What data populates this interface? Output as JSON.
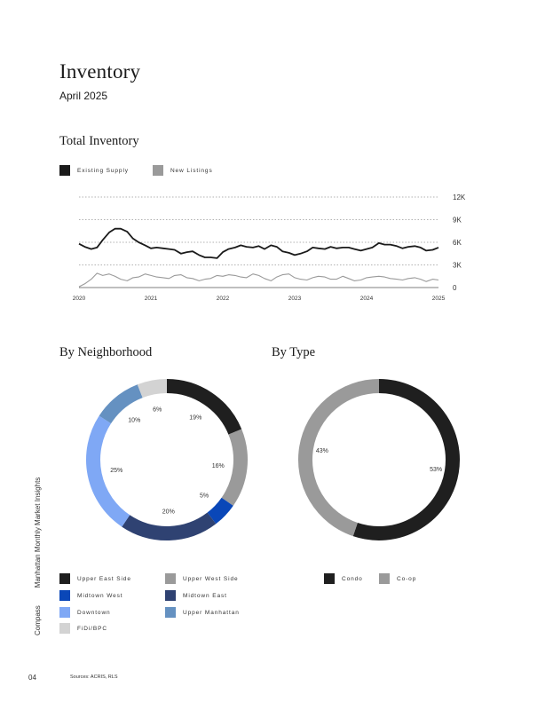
{
  "page": {
    "title": "Inventory",
    "subtitle": "April 2025",
    "page_number": "04",
    "sources": "Sources: ACRIS, RLS",
    "side_brand": "Compass",
    "side_publication": "Manhattan Monthly Market Insights"
  },
  "sections": {
    "total_inventory": "Total Inventory",
    "by_neighborhood": "By Neighborhood",
    "by_type": "By Type"
  },
  "colors": {
    "existing_supply": "#1a1a1a",
    "new_listings": "#9a9a9a",
    "upper_east_side": "#1f1f1f",
    "upper_west_side": "#9a9a9a",
    "midtown_west": "#0a47b8",
    "midtown_east": "#2f4272",
    "downtown": "#7fa8f5",
    "upper_manhattan": "#6591c1",
    "fidi_bpc": "#d3d3d3",
    "condo": "#1f1f1f",
    "co_op": "#9a9a9a"
  },
  "chart_data": [
    {
      "type": "line",
      "title": "Total Inventory",
      "xlabel": "",
      "ylabel": "",
      "x_ticks": [
        "2020",
        "2021",
        "2022",
        "2023",
        "2024",
        "2025"
      ],
      "y_ticks": [
        "0",
        "3K",
        "6K",
        "9K",
        "12K"
      ],
      "ylim": [
        0,
        12000
      ],
      "xlim": [
        2020,
        2025
      ],
      "grid": "horizontal dotted",
      "legend": "top-left",
      "series": [
        {
          "name": "Existing Supply",
          "x": [
            2020.0,
            2020.08,
            2020.17,
            2020.25,
            2020.33,
            2020.42,
            2020.5,
            2020.58,
            2020.67,
            2020.75,
            2020.83,
            2020.92,
            2021.0,
            2021.08,
            2021.17,
            2021.25,
            2021.33,
            2021.42,
            2021.5,
            2021.58,
            2021.67,
            2021.75,
            2021.83,
            2021.92,
            2022.0,
            2022.08,
            2022.17,
            2022.25,
            2022.33,
            2022.42,
            2022.5,
            2022.58,
            2022.67,
            2022.75,
            2022.83,
            2022.92,
            2023.0,
            2023.08,
            2023.17,
            2023.25,
            2023.33,
            2023.42,
            2023.5,
            2023.58,
            2023.67,
            2023.75,
            2023.83,
            2023.92,
            2024.0,
            2024.08,
            2024.17,
            2024.25,
            2024.33,
            2024.42,
            2024.5,
            2024.58,
            2024.67,
            2024.75,
            2024.83,
            2024.92,
            2025.0
          ],
          "values": [
            5800,
            5400,
            5100,
            5300,
            6300,
            7300,
            7800,
            7800,
            7400,
            6500,
            6000,
            5600,
            5200,
            5300,
            5200,
            5100,
            5000,
            4500,
            4700,
            4800,
            4300,
            4000,
            4000,
            3900,
            4700,
            5100,
            5300,
            5600,
            5400,
            5300,
            5500,
            5100,
            5600,
            5400,
            4800,
            4600,
            4300,
            4500,
            4800,
            5300,
            5200,
            5100,
            5400,
            5200,
            5300,
            5300,
            5100,
            4900,
            5100,
            5300,
            5900,
            5700,
            5700,
            5500,
            5200,
            5400,
            5500,
            5300,
            4900,
            5000,
            5300
          ]
        },
        {
          "name": "New Listings",
          "x": [
            2020.0,
            2020.08,
            2020.17,
            2020.25,
            2020.33,
            2020.42,
            2020.5,
            2020.58,
            2020.67,
            2020.75,
            2020.83,
            2020.92,
            2021.0,
            2021.08,
            2021.17,
            2021.25,
            2021.33,
            2021.42,
            2021.5,
            2021.58,
            2021.67,
            2021.75,
            2021.83,
            2021.92,
            2022.0,
            2022.08,
            2022.17,
            2022.25,
            2022.33,
            2022.42,
            2022.5,
            2022.58,
            2022.67,
            2022.75,
            2022.83,
            2022.92,
            2023.0,
            2023.08,
            2023.17,
            2023.25,
            2023.33,
            2023.42,
            2023.5,
            2023.58,
            2023.67,
            2023.75,
            2023.83,
            2023.92,
            2024.0,
            2024.08,
            2024.17,
            2024.25,
            2024.33,
            2024.42,
            2024.5,
            2024.58,
            2024.67,
            2024.75,
            2024.83,
            2024.92,
            2025.0
          ],
          "values": [
            100,
            500,
            1100,
            1900,
            1600,
            1800,
            1500,
            1100,
            900,
            1300,
            1400,
            1800,
            1600,
            1400,
            1300,
            1200,
            1600,
            1700,
            1300,
            1200,
            900,
            1100,
            1200,
            1600,
            1500,
            1700,
            1600,
            1400,
            1300,
            1800,
            1600,
            1200,
            900,
            1400,
            1700,
            1800,
            1300,
            1100,
            1000,
            1300,
            1500,
            1400,
            1100,
            1100,
            1500,
            1200,
            900,
            1000,
            1300,
            1400,
            1500,
            1400,
            1200,
            1100,
            1000,
            1200,
            1300,
            1100,
            800,
            1100,
            1000
          ]
        }
      ]
    },
    {
      "type": "pie",
      "title": "By Neighborhood",
      "legend": "bottom",
      "slices": [
        {
          "name": "Upper East Side",
          "value": 19,
          "label": "19%",
          "color_key": "upper_east_side"
        },
        {
          "name": "Upper West Side",
          "value": 16,
          "label": "16%",
          "color_key": "upper_west_side"
        },
        {
          "name": "Midtown West",
          "value": 5,
          "label": "5%",
          "color_key": "midtown_west"
        },
        {
          "name": "Midtown East",
          "value": 20,
          "label": "20%",
          "color_key": "midtown_east"
        },
        {
          "name": "Downtown",
          "value": 25,
          "label": "25%",
          "color_key": "downtown"
        },
        {
          "name": "Upper Manhattan",
          "value": 10,
          "label": "10%",
          "color_key": "upper_manhattan"
        },
        {
          "name": "FiDi/BPC",
          "value": 6,
          "label": "6%",
          "color_key": "fidi_bpc"
        }
      ]
    },
    {
      "type": "pie",
      "title": "By Type",
      "legend": "bottom",
      "slices": [
        {
          "name": "Condo",
          "value": 53,
          "label": "53%",
          "color_key": "condo"
        },
        {
          "name": "Co-op",
          "value": 43,
          "label": "43%",
          "color_key": "co_op"
        }
      ]
    }
  ]
}
